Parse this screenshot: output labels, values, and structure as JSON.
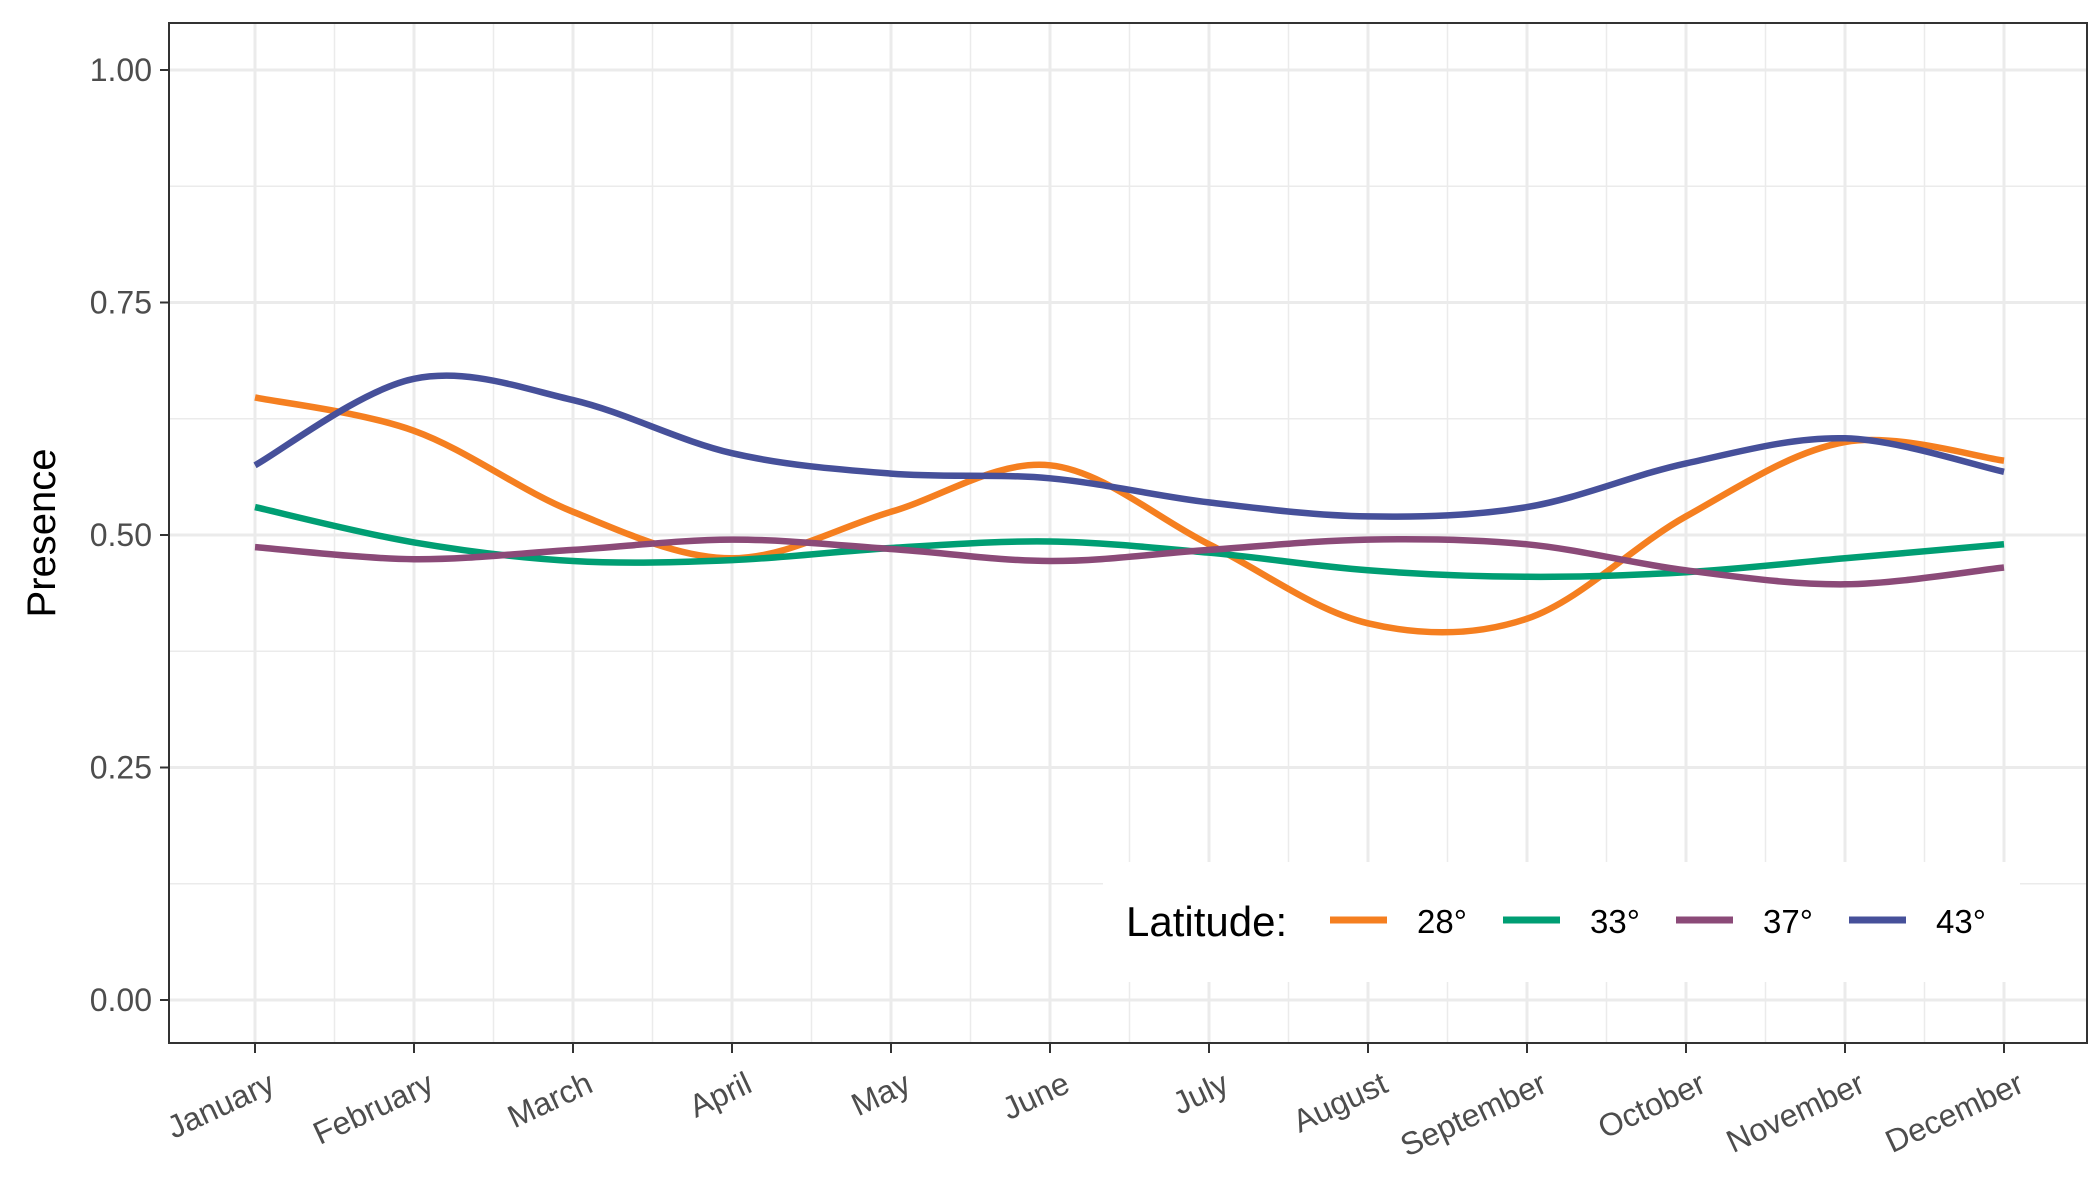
{
  "chart_data": {
    "type": "line",
    "title": "",
    "xlabel": "",
    "ylabel": "Presence",
    "categories": [
      "January",
      "February",
      "March",
      "April",
      "May",
      "June",
      "July",
      "August",
      "September",
      "October",
      "November",
      "December"
    ],
    "ylim": [
      0,
      1
    ],
    "yticks": [
      "0.00",
      "0.25",
      "0.50",
      "0.75",
      "1.00"
    ],
    "grid": true,
    "legend": {
      "title": "Latitude:",
      "position": "bottom-right"
    },
    "series": [
      {
        "name": "28°",
        "color": "#F57F20",
        "values": [
          0.648,
          0.612,
          0.525,
          0.475,
          0.525,
          0.575,
          0.49,
          0.405,
          0.41,
          0.52,
          0.6,
          0.58
        ]
      },
      {
        "name": "33°",
        "color": "#009E73",
        "values": [
          0.53,
          0.492,
          0.472,
          0.473,
          0.486,
          0.493,
          0.481,
          0.462,
          0.455,
          0.46,
          0.475,
          0.49
        ]
      },
      {
        "name": "37°",
        "color": "#8B4A78",
        "values": [
          0.487,
          0.474,
          0.484,
          0.495,
          0.485,
          0.472,
          0.484,
          0.495,
          0.49,
          0.462,
          0.447,
          0.465
        ]
      },
      {
        "name": "43°",
        "color": "#46509A",
        "values": [
          0.575,
          0.668,
          0.645,
          0.588,
          0.566,
          0.561,
          0.535,
          0.52,
          0.53,
          0.577,
          0.604,
          0.568
        ]
      }
    ]
  }
}
